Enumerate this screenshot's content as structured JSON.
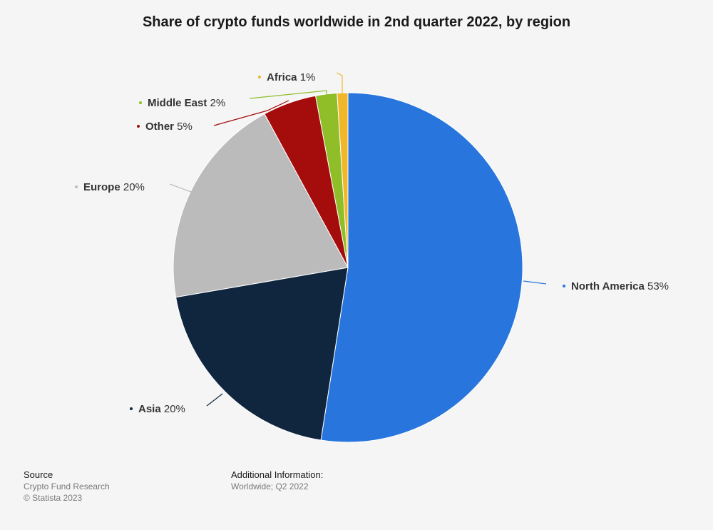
{
  "title": "Share of crypto funds worldwide in 2nd quarter 2022, by region",
  "chart_data": {
    "type": "pie",
    "unit": "%",
    "slices": [
      {
        "label": "North America",
        "value": 53,
        "color": "#2876dd"
      },
      {
        "label": "Asia",
        "value": 20,
        "color": "#10263e"
      },
      {
        "label": "Europe",
        "value": 20,
        "color": "#bbbbbb"
      },
      {
        "label": "Other",
        "value": 5,
        "color": "#a50c0c"
      },
      {
        "label": "Middle East",
        "value": 2,
        "color": "#8fbe28"
      },
      {
        "label": "Africa",
        "value": 1,
        "color": "#f1b72b"
      }
    ]
  },
  "footer": {
    "source_heading": "Source",
    "source_text": "Crypto Fund Research",
    "copyright": "© Statista 2023",
    "info_heading": "Additional Information:",
    "info_text": "Worldwide; Q2 2022"
  }
}
